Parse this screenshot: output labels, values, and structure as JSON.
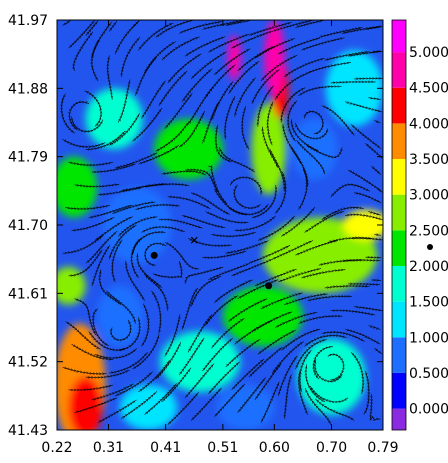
{
  "chart_data": {
    "type": "heatmap",
    "title": "",
    "xlabel": "",
    "ylabel": "",
    "xlim": [
      0.22,
      0.79
    ],
    "ylim": [
      41.43,
      41.97
    ],
    "x_ticks": [
      "0.22",
      "0.31",
      "0.41",
      "0.51",
      "0.60",
      "0.70",
      "0.79"
    ],
    "y_ticks": [
      "41.43",
      "41.52",
      "41.61",
      "41.70",
      "41.79",
      "41.88",
      "41.97"
    ],
    "colorbar": {
      "levels": [
        "0.000",
        "0.500",
        "1.000",
        "1.500",
        "2.000",
        "2.500",
        "3.000",
        "3.500",
        "4.000",
        "4.500",
        "5.000"
      ],
      "colors": [
        "#8a2be2",
        "#0000ff",
        "#1e6fff",
        "#00e5ff",
        "#00ffd0",
        "#00e600",
        "#88ee00",
        "#ffff00",
        "#ff8c00",
        "#ff0000",
        "#ff00aa",
        "#ff00ff"
      ]
    },
    "background_color": "#2255ee",
    "blobs": [
      {
        "x": 0.26,
        "y": 41.49,
        "rx": 0.045,
        "ry": 0.08,
        "level": 3.6
      },
      {
        "x": 0.27,
        "y": 41.46,
        "rx": 0.03,
        "ry": 0.04,
        "level": 4.1
      },
      {
        "x": 0.24,
        "y": 41.62,
        "rx": 0.03,
        "ry": 0.025,
        "level": 2.8
      },
      {
        "x": 0.6,
        "y": 41.92,
        "rx": 0.018,
        "ry": 0.05,
        "level": 4.8
      },
      {
        "x": 0.61,
        "y": 41.88,
        "rx": 0.015,
        "ry": 0.04,
        "level": 4.3
      },
      {
        "x": 0.53,
        "y": 41.92,
        "rx": 0.012,
        "ry": 0.03,
        "level": 4.6
      },
      {
        "x": 0.59,
        "y": 41.8,
        "rx": 0.03,
        "ry": 0.06,
        "level": 2.6
      },
      {
        "x": 0.45,
        "y": 41.8,
        "rx": 0.06,
        "ry": 0.04,
        "level": 2.3
      },
      {
        "x": 0.68,
        "y": 41.66,
        "rx": 0.1,
        "ry": 0.05,
        "level": 2.7
      },
      {
        "x": 0.76,
        "y": 41.7,
        "rx": 0.04,
        "ry": 0.02,
        "level": 3.4
      },
      {
        "x": 0.58,
        "y": 41.58,
        "rx": 0.07,
        "ry": 0.04,
        "level": 2.2
      },
      {
        "x": 0.32,
        "y": 41.84,
        "rx": 0.05,
        "ry": 0.04,
        "level": 1.8
      },
      {
        "x": 0.25,
        "y": 41.75,
        "rx": 0.04,
        "ry": 0.04,
        "level": 2.0
      },
      {
        "x": 0.47,
        "y": 41.52,
        "rx": 0.07,
        "ry": 0.04,
        "level": 1.8
      },
      {
        "x": 0.7,
        "y": 41.5,
        "rx": 0.06,
        "ry": 0.05,
        "level": 1.9
      },
      {
        "x": 0.38,
        "y": 41.46,
        "rx": 0.05,
        "ry": 0.03,
        "level": 1.4
      },
      {
        "x": 0.74,
        "y": 41.88,
        "rx": 0.05,
        "ry": 0.05,
        "level": 1.3
      },
      {
        "x": 0.36,
        "y": 41.7,
        "rx": 0.06,
        "ry": 0.05,
        "level": 0.7
      },
      {
        "x": 0.67,
        "y": 41.8,
        "rx": 0.04,
        "ry": 0.04,
        "level": 0.8
      },
      {
        "x": 0.55,
        "y": 41.46,
        "rx": 0.05,
        "ry": 0.03,
        "level": 0.8
      },
      {
        "x": 0.33,
        "y": 41.58,
        "rx": 0.04,
        "ry": 0.04,
        "level": 0.9
      }
    ],
    "points": [
      {
        "x": 0.39,
        "y": 41.66,
        "marker": "dot"
      },
      {
        "x": 0.59,
        "y": 41.62,
        "marker": "dot"
      },
      {
        "x": 0.46,
        "y": 41.68,
        "marker": "x"
      }
    ],
    "vortices": [
      {
        "x": 0.39,
        "y": 41.66
      },
      {
        "x": 0.27,
        "y": 41.84
      },
      {
        "x": 0.66,
        "y": 41.84
      },
      {
        "x": 0.33,
        "y": 41.56
      },
      {
        "x": 0.7,
        "y": 41.52
      },
      {
        "x": 0.56,
        "y": 41.74
      }
    ]
  }
}
